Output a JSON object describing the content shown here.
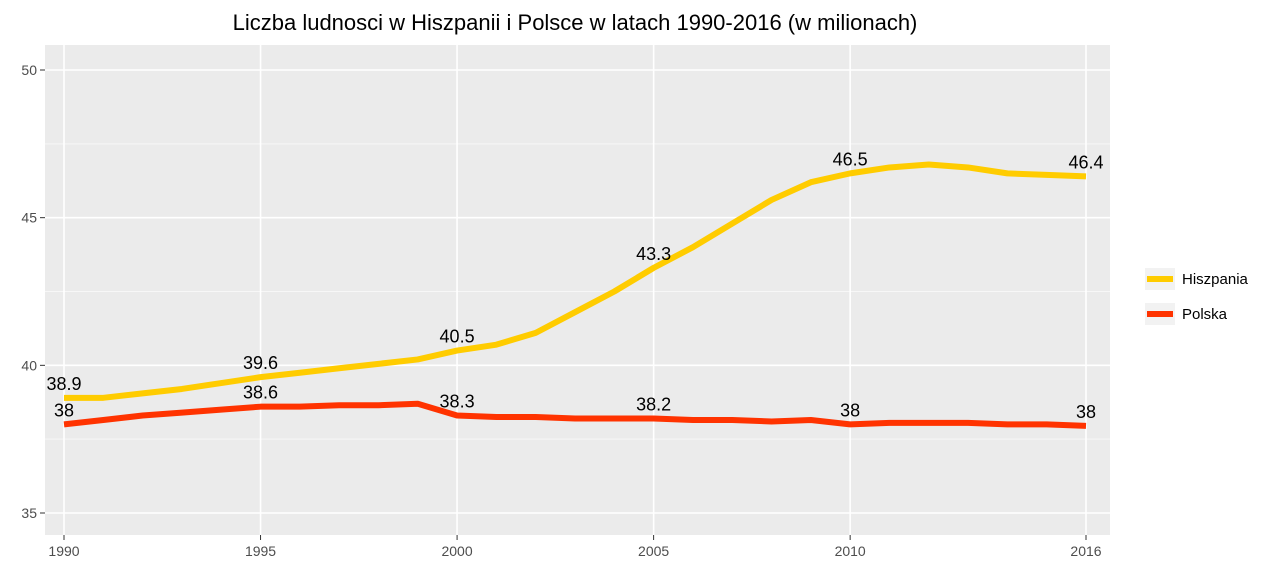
{
  "chart_data": {
    "type": "line",
    "title": "Liczba ludnosci w Hiszpanii i Polsce w latach 1990-2016 (w milionach)",
    "xlabel": "",
    "ylabel": "",
    "xlim": [
      1990,
      2016
    ],
    "ylim": [
      35,
      50
    ],
    "x_ticks": [
      "1990",
      "1995",
      "2000",
      "2005",
      "2010",
      "2016"
    ],
    "y_ticks": [
      "35",
      "40",
      "45",
      "50"
    ],
    "grid": true,
    "legend_position": "right",
    "x": [
      1990,
      1991,
      1992,
      1993,
      1994,
      1995,
      1996,
      1997,
      1998,
      1999,
      2000,
      2001,
      2002,
      2003,
      2004,
      2005,
      2006,
      2007,
      2008,
      2009,
      2010,
      2011,
      2012,
      2013,
      2014,
      2015,
      2016
    ],
    "series": [
      {
        "name": "Hiszpania",
        "color": "#FFCC00",
        "values": [
          38.9,
          38.9,
          39.05,
          39.2,
          39.4,
          39.6,
          39.75,
          39.9,
          40.05,
          40.2,
          40.5,
          40.7,
          41.1,
          41.8,
          42.5,
          43.3,
          44.0,
          44.8,
          45.6,
          46.2,
          46.5,
          46.7,
          46.8,
          46.7,
          46.5,
          46.45,
          46.4
        ],
        "labels": [
          {
            "x": 1990,
            "text": "38.9"
          },
          {
            "x": 1995,
            "text": "39.6"
          },
          {
            "x": 2000,
            "text": "40.5"
          },
          {
            "x": 2005,
            "text": "43.3"
          },
          {
            "x": 2010,
            "text": "46.5"
          },
          {
            "x": 2016,
            "text": "46.4"
          }
        ]
      },
      {
        "name": "Polska",
        "color": "#FF3300",
        "values": [
          38.0,
          38.15,
          38.3,
          38.4,
          38.5,
          38.6,
          38.6,
          38.65,
          38.65,
          38.7,
          38.3,
          38.25,
          38.25,
          38.2,
          38.2,
          38.2,
          38.15,
          38.15,
          38.1,
          38.15,
          38.0,
          38.05,
          38.05,
          38.05,
          38.0,
          38.0,
          37.95
        ],
        "labels": [
          {
            "x": 1990,
            "text": "38"
          },
          {
            "x": 1995,
            "text": "38.6"
          },
          {
            "x": 2000,
            "text": "38.3"
          },
          {
            "x": 2005,
            "text": "38.2"
          },
          {
            "x": 2010,
            "text": "38"
          },
          {
            "x": 2016,
            "text": "38"
          }
        ]
      }
    ]
  }
}
